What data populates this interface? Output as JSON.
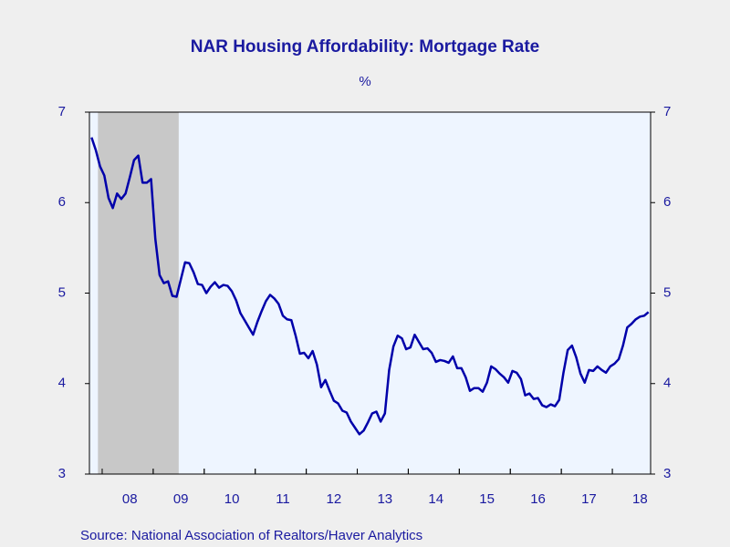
{
  "chart_data": {
    "type": "line",
    "title": "NAR Housing Affordability: Mortgage Rate",
    "subtitle": "%",
    "source": "Source:  National Association of Realtors/Haver Analytics",
    "categories": [
      null,
      null,
      null,
      null,
      null,
      null,
      null,
      null,
      null,
      "08",
      null,
      null,
      null,
      null,
      null,
      null,
      null,
      null,
      null,
      null,
      null,
      "09",
      null,
      null,
      null,
      null,
      null,
      null,
      null,
      null,
      null,
      null,
      null,
      "10",
      null,
      null,
      null,
      null,
      null,
      null,
      null,
      null,
      null,
      null,
      null,
      "11",
      null,
      null,
      null,
      null,
      null,
      null,
      null,
      null,
      null,
      null,
      null,
      "12",
      null,
      null,
      null,
      null,
      null,
      null,
      null,
      null,
      null,
      null,
      null,
      "13",
      null,
      null,
      null,
      null,
      null,
      null,
      null,
      null,
      null,
      null,
      null,
      "14",
      null,
      null,
      null,
      null,
      null,
      null,
      null,
      null,
      null,
      null,
      null,
      "15",
      null,
      null,
      null,
      null,
      null,
      null,
      null,
      null,
      null,
      null,
      null,
      "16",
      null,
      null,
      null,
      null,
      null,
      null,
      null,
      null,
      null,
      null,
      null,
      "17",
      null,
      null,
      null,
      null,
      null,
      null,
      null,
      null,
      null,
      null,
      null,
      "18",
      null,
      null
    ],
    "series": [
      {
        "name": "Mortgage Rate",
        "color": "#0000aa",
        "values": [
          6.72,
          6.58,
          6.4,
          6.3,
          6.05,
          5.94,
          6.1,
          6.04,
          6.1,
          6.28,
          6.47,
          6.52,
          6.22,
          6.22,
          6.26,
          5.6,
          5.2,
          5.11,
          5.13,
          4.97,
          4.96,
          5.15,
          5.34,
          5.33,
          5.23,
          5.1,
          5.09,
          5.0,
          5.07,
          5.12,
          5.06,
          5.09,
          5.08,
          5.02,
          4.92,
          4.78,
          4.7,
          4.62,
          4.54,
          4.68,
          4.8,
          4.91,
          4.98,
          4.94,
          4.88,
          4.75,
          4.71,
          4.7,
          4.53,
          4.33,
          4.34,
          4.28,
          4.36,
          4.21,
          3.96,
          4.04,
          3.92,
          3.81,
          3.78,
          3.7,
          3.68,
          3.58,
          3.51,
          3.44,
          3.48,
          3.57,
          3.67,
          3.69,
          3.58,
          3.67,
          4.15,
          4.41,
          4.53,
          4.5,
          4.38,
          4.4,
          4.54,
          4.46,
          4.38,
          4.39,
          4.34,
          4.24,
          4.26,
          4.25,
          4.23,
          4.3,
          4.17,
          4.17,
          4.07,
          3.92,
          3.95,
          3.95,
          3.91,
          4.01,
          4.19,
          4.16,
          4.11,
          4.07,
          4.01,
          4.14,
          4.12,
          4.05,
          3.87,
          3.89,
          3.83,
          3.84,
          3.76,
          3.74,
          3.77,
          3.75,
          3.82,
          4.12,
          4.37,
          4.42,
          4.29,
          4.11,
          4.01,
          4.15,
          4.14,
          4.19,
          4.15,
          4.12,
          4.19,
          4.22,
          4.27,
          4.42,
          4.62,
          4.66,
          4.71,
          4.74,
          4.75,
          4.79
        ]
      }
    ],
    "ylim": [
      3,
      7
    ],
    "yticks": [
      3,
      4,
      5,
      6,
      7
    ],
    "y2lim": [
      3,
      7
    ],
    "y2ticks": [
      3,
      4,
      5,
      6,
      7
    ],
    "shade": {
      "start_index": 2,
      "end_index": 20,
      "color": "#c8c8c8"
    },
    "plot_background": "#eef5ff"
  }
}
